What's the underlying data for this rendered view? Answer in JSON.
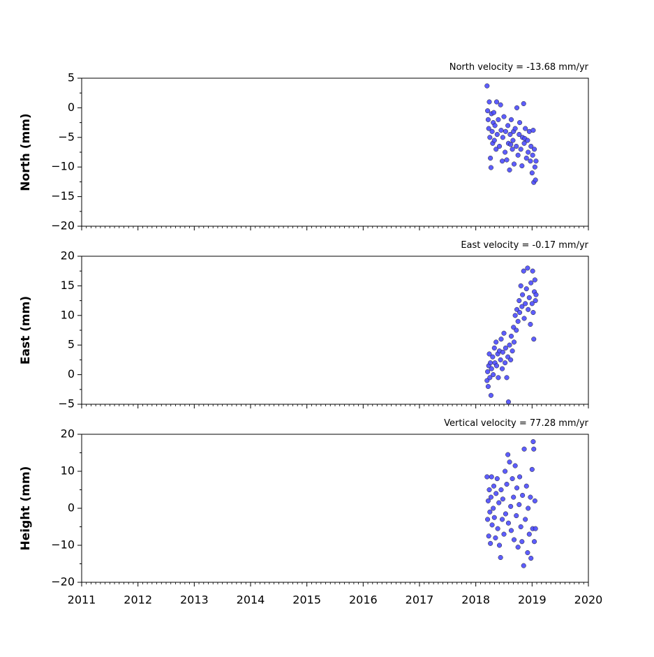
{
  "chart_data": [
    {
      "type": "scatter",
      "title": "North velocity = -13.68 mm/yr",
      "ylabel": "North (mm)",
      "color": "#4b4bff",
      "ylim": [
        -20,
        5
      ],
      "yticks": [
        {
          "value": -20,
          "label": "−20"
        },
        {
          "value": -15,
          "label": "−15"
        },
        {
          "value": -10,
          "label": "−10"
        },
        {
          "value": -5,
          "label": "−5"
        },
        0,
        5
      ],
      "x": [
        2018.2,
        2018.21,
        2018.22,
        2018.23,
        2018.24,
        2018.25,
        2018.26,
        2018.27,
        2018.28,
        2018.29,
        2018.3,
        2018.31,
        2018.32,
        2018.33,
        2018.34,
        2018.36,
        2018.37,
        2018.38,
        2018.4,
        2018.42,
        2018.44,
        2018.45,
        2018.47,
        2018.48,
        2018.5,
        2018.52,
        2018.53,
        2018.55,
        2018.57,
        2018.58,
        2018.6,
        2018.61,
        2018.62,
        2018.63,
        2018.65,
        2018.66,
        2018.67,
        2018.68,
        2018.7,
        2018.72,
        2018.73,
        2018.75,
        2018.77,
        2018.78,
        2018.8,
        2018.82,
        2018.83,
        2018.85,
        2018.86,
        2018.87,
        2018.88,
        2018.9,
        2018.92,
        2018.93,
        2018.95,
        2018.97,
        2018.98,
        2019.0,
        2019.01,
        2019.02,
        2019.03,
        2019.04,
        2019.05,
        2019.06,
        2019.07
      ],
      "values": [
        3.7,
        -0.5,
        -2,
        -3.5,
        1.0,
        -5,
        -8.5,
        -10.1,
        -1,
        -4,
        -6,
        -2.5,
        -0.8,
        -5.5,
        -3,
        -7,
        1.0,
        -4.5,
        -2,
        -6.5,
        0.5,
        -3.8,
        -9,
        -5,
        -1.5,
        -7.5,
        -4,
        -8.8,
        -3,
        -6,
        -10.5,
        -4.5,
        -6.2,
        -2,
        -7,
        -5.5,
        -4,
        -9.5,
        -3.5,
        -6.5,
        0.0,
        -8,
        -4.5,
        -2.5,
        -7,
        -9.8,
        -5,
        0.7,
        -6,
        -5.2,
        -3.5,
        -8.5,
        -5.5,
        -7.5,
        -4,
        -9,
        -6.5,
        -11,
        -8,
        -3.8,
        -12.6,
        -7,
        -10,
        -12.2,
        -9
      ]
    },
    {
      "type": "scatter",
      "title": "East velocity = -0.17 mm/yr",
      "ylabel": "East (mm)",
      "color": "#4b4bff",
      "ylim": [
        -5,
        20
      ],
      "yticks": [
        {
          "value": -5,
          "label": "−5"
        },
        0,
        5,
        10,
        15,
        20
      ],
      "x": [
        2018.2,
        2018.21,
        2018.22,
        2018.23,
        2018.24,
        2018.25,
        2018.26,
        2018.27,
        2018.28,
        2018.3,
        2018.31,
        2018.33,
        2018.34,
        2018.36,
        2018.37,
        2018.39,
        2018.4,
        2018.42,
        2018.44,
        2018.45,
        2018.47,
        2018.48,
        2018.5,
        2018.52,
        2018.53,
        2018.55,
        2018.57,
        2018.58,
        2018.6,
        2018.62,
        2018.63,
        2018.65,
        2018.67,
        2018.68,
        2018.7,
        2018.72,
        2018.73,
        2018.75,
        2018.77,
        2018.78,
        2018.8,
        2018.82,
        2018.83,
        2018.85,
        2018.86,
        2018.88,
        2018.9,
        2018.92,
        2018.93,
        2018.95,
        2018.97,
        2018.98,
        2019.0,
        2019.01,
        2019.02,
        2019.03,
        2019.04,
        2019.05,
        2019.06,
        2019.07
      ],
      "values": [
        -1,
        0.5,
        -2,
        1.5,
        3.5,
        -0.5,
        2,
        -3.5,
        1,
        3,
        0,
        4.5,
        2,
        5.5,
        1.5,
        3.5,
        -0.5,
        4,
        2.5,
        6,
        1,
        3.8,
        7,
        2,
        4.5,
        -0.5,
        3,
        -4.6,
        5,
        2.5,
        6.5,
        4,
        8,
        5.5,
        10,
        7.5,
        11,
        9,
        12.5,
        10.5,
        15,
        11.5,
        13.5,
        17.5,
        9.5,
        12,
        14.5,
        18,
        11,
        13,
        8.5,
        15.5,
        12,
        17.5,
        10.5,
        6,
        14,
        16,
        12.5,
        13.5
      ]
    },
    {
      "type": "scatter",
      "title": "Vertical velocity = 77.28 mm/yr",
      "ylabel": "Height (mm)",
      "color": "#4b4bff",
      "xlim": [
        2011,
        2020
      ],
      "xticks": [
        2011,
        2012,
        2013,
        2014,
        2015,
        2016,
        2017,
        2018,
        2019,
        2020
      ],
      "ylim": [
        -20,
        20
      ],
      "yticks": [
        {
          "value": -20,
          "label": "−20"
        },
        {
          "value": -10,
          "label": "−10"
        },
        0,
        10,
        20
      ],
      "x": [
        2018.2,
        2018.21,
        2018.22,
        2018.23,
        2018.24,
        2018.25,
        2018.26,
        2018.27,
        2018.28,
        2018.29,
        2018.31,
        2018.32,
        2018.33,
        2018.35,
        2018.36,
        2018.38,
        2018.39,
        2018.41,
        2018.42,
        2018.44,
        2018.45,
        2018.47,
        2018.48,
        2018.5,
        2018.52,
        2018.53,
        2018.55,
        2018.57,
        2018.58,
        2018.6,
        2018.62,
        2018.63,
        2018.65,
        2018.67,
        2018.68,
        2018.7,
        2018.72,
        2018.73,
        2018.75,
        2018.77,
        2018.78,
        2018.8,
        2018.82,
        2018.83,
        2018.85,
        2018.86,
        2018.88,
        2018.9,
        2018.92,
        2018.93,
        2018.95,
        2018.97,
        2018.98,
        2019.0,
        2019.01,
        2019.02,
        2019.03,
        2019.04,
        2019.05,
        2019.06
      ],
      "values": [
        8.5,
        -3,
        2,
        -7.5,
        5,
        -1,
        -9.5,
        3,
        8.5,
        -4.5,
        0,
        6,
        -2.5,
        -8,
        4,
        8,
        -5.5,
        1.5,
        -10,
        -13.3,
        5,
        -3,
        2.5,
        -7,
        10,
        -1.5,
        6.5,
        14.5,
        -4,
        12.5,
        0.5,
        -6,
        8,
        3,
        -8.5,
        11.5,
        -2,
        5.5,
        -10.5,
        1,
        8.5,
        -5,
        -9,
        3.5,
        -15.5,
        16,
        -3,
        6,
        -12,
        0,
        -7,
        3,
        -13.5,
        10.5,
        -5.5,
        18,
        16,
        -9,
        2,
        -5.5
      ]
    }
  ]
}
